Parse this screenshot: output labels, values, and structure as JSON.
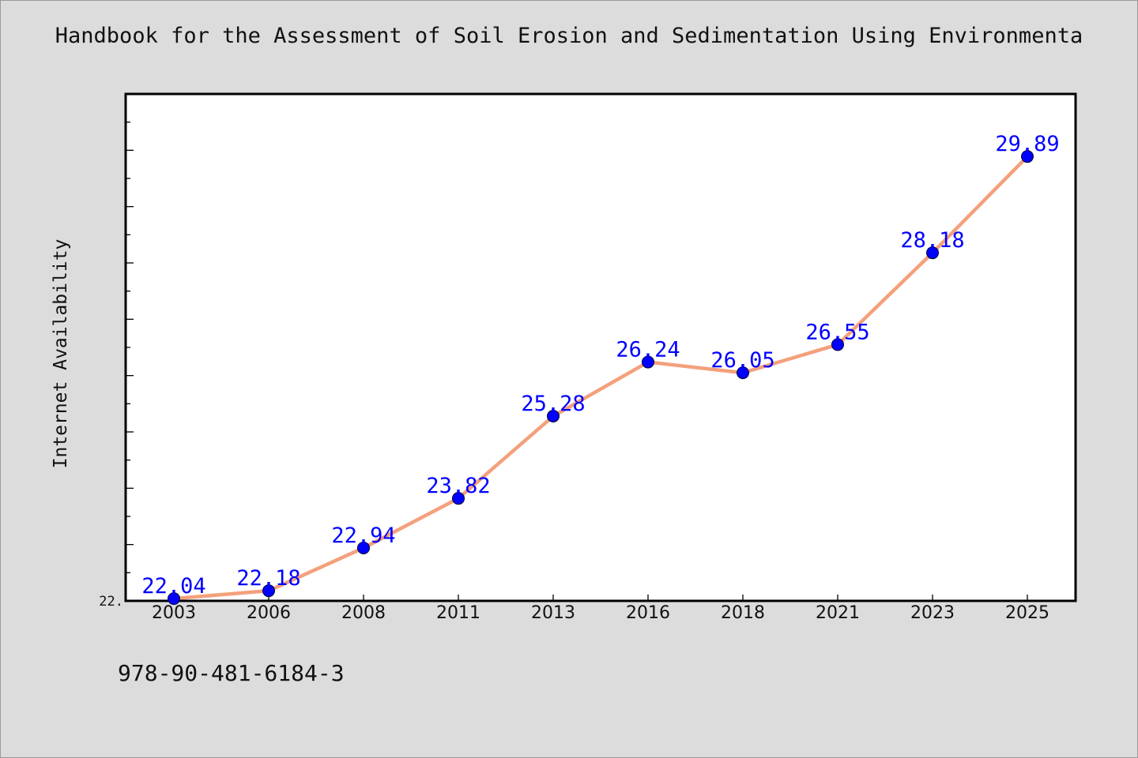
{
  "colors": {
    "background": "#dcdcdc",
    "plot_background": "#ffffff",
    "line": "#f4a07c",
    "marker": "#0000ff",
    "data_label": "#0000ff"
  },
  "footer": {
    "isbn": "978-90-481-6184-3"
  },
  "chart_data": {
    "type": "line",
    "title": "Handbook for the Assessment of Soil Erosion and Sedimentation Using Environmenta",
    "ylabel": "Internet Availability",
    "xlabel": "",
    "categories": [
      "2003",
      "2006",
      "2008",
      "2011",
      "2013",
      "2016",
      "2018",
      "2021",
      "2023",
      "2025"
    ],
    "series": [
      {
        "values": [
          22.04,
          22.18,
          22.94,
          23.82,
          25.28,
          26.24,
          26.05,
          26.55,
          28.18,
          29.89
        ],
        "labels": [
          "22.04",
          "22.18",
          "22.94",
          "23.82",
          "25.28",
          "26.24",
          "26.05",
          "26.55",
          "28.18",
          "29.89"
        ]
      }
    ],
    "ylim": [
      22.0,
      31.0
    ],
    "y_tick_labels": [
      "22."
    ],
    "grid": false,
    "legend": "none"
  }
}
